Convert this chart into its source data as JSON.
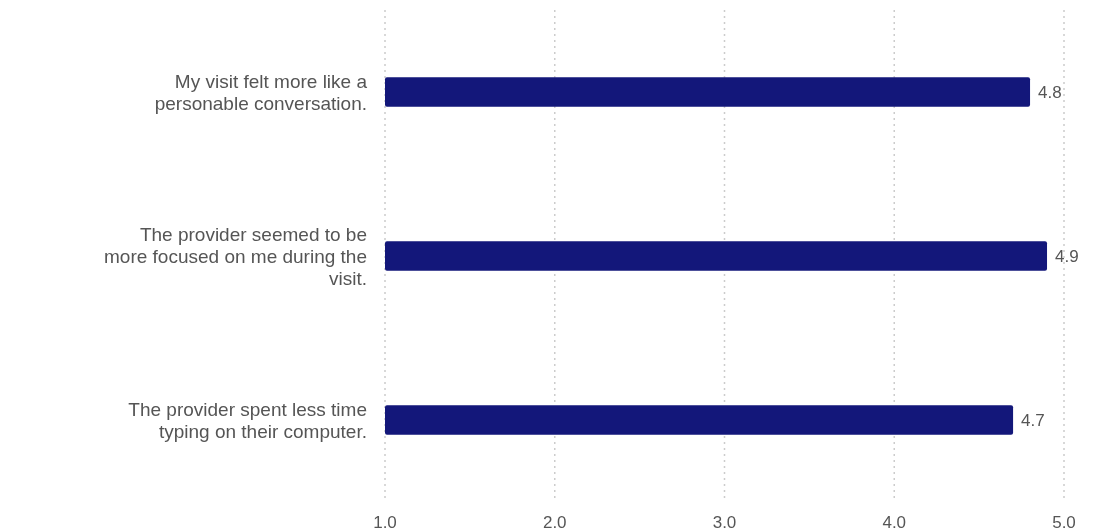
{
  "chart_data": {
    "type": "bar",
    "orientation": "horizontal",
    "categories": [
      "My visit felt more like a personable conversation.",
      "The provider seemed to be more focused on me during the visit.",
      "The provider spent less time typing on their computer."
    ],
    "values": [
      4.8,
      4.9,
      4.7
    ],
    "color": "#13177a",
    "xlim": [
      1,
      5
    ],
    "xticks": [
      {
        "value": 1,
        "label": "1.0"
      },
      {
        "value": 2,
        "label": "2.0"
      },
      {
        "value": 3,
        "label": "3.0"
      },
      {
        "value": 4,
        "label": "4.0"
      },
      {
        "value": 5,
        "label": "5.0"
      }
    ],
    "grid": "x",
    "data_labels": true
  }
}
